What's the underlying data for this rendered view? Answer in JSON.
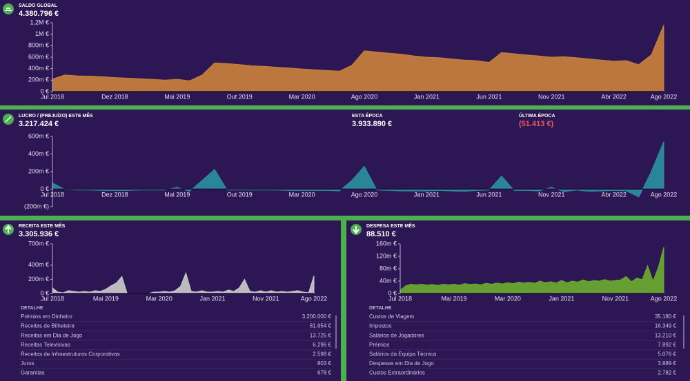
{
  "chart_data": [
    {
      "type": "area",
      "title": "SALDO GLOBAL",
      "amount": "4.380.796 €",
      "color": "#c8803c",
      "categories": [
        "Jul 2018",
        null,
        null,
        null,
        null,
        "Dez 2018",
        null,
        null,
        null,
        null,
        "Mai 2019",
        null,
        null,
        null,
        null,
        "Out 2019",
        null,
        null,
        null,
        null,
        "Mar 2020",
        null,
        null,
        null,
        null,
        "Ago 2020",
        null,
        null,
        null,
        null,
        "Jan 2021",
        null,
        null,
        null,
        null,
        "Jun 2021",
        null,
        null,
        null,
        null,
        "Nov 2021",
        null,
        null,
        null,
        null,
        "Abr 2022",
        null,
        null,
        null,
        "Ago 2022"
      ],
      "values": [
        220,
        290,
        275,
        270,
        260,
        245,
        235,
        225,
        215,
        200,
        215,
        190,
        290,
        500,
        490,
        470,
        450,
        440,
        425,
        410,
        395,
        380,
        370,
        355,
        460,
        710,
        690,
        670,
        650,
        620,
        600,
        590,
        570,
        550,
        540,
        510,
        680,
        660,
        640,
        620,
        600,
        610,
        590,
        570,
        550,
        530,
        540,
        470,
        640,
        1160
      ],
      "ylim": [
        0,
        1200
      ],
      "yticks": [
        {
          "value": 0,
          "label": "0 €"
        },
        {
          "value": 200,
          "label": "200m €"
        },
        {
          "value": 400,
          "label": "400m €"
        },
        {
          "value": 600,
          "label": "600m €"
        },
        {
          "value": 800,
          "label": "800m €"
        },
        {
          "value": 1000,
          "label": "1M €"
        },
        {
          "value": 1200,
          "label": "1,2M €"
        }
      ]
    },
    {
      "type": "area",
      "title": "LUCRO / (PREJUÍZO) ESTE MÊS",
      "amount": "3.217.424 €",
      "color": "#2a8fa0",
      "stats": [
        {
          "label": "ESTA ÉPOCA",
          "value": "3.933.890 €",
          "color": "#ffffff"
        },
        {
          "label": "ÚLTIMA ÉPOCA",
          "value": "(51.413 €)",
          "color": "#f05a5a"
        }
      ],
      "categories": [
        "Jul 2018",
        null,
        null,
        null,
        null,
        "Dez 2018",
        null,
        null,
        null,
        null,
        "Mai 2019",
        null,
        null,
        null,
        null,
        "Out 2019",
        null,
        null,
        null,
        null,
        "Mar 2020",
        null,
        null,
        null,
        null,
        "Ago 2020",
        null,
        null,
        null,
        null,
        "Jan 2021",
        null,
        null,
        null,
        null,
        "Jun 2021",
        null,
        null,
        null,
        null,
        "Nov 2021",
        null,
        null,
        null,
        null,
        "Abr 2022",
        null,
        null,
        null,
        "Ago 2022"
      ],
      "values": [
        70,
        -5,
        -10,
        -10,
        -15,
        -15,
        -15,
        -10,
        -10,
        -10,
        20,
        -25,
        100,
        225,
        -10,
        -10,
        -10,
        -10,
        -10,
        -15,
        -15,
        -15,
        -15,
        -20,
        100,
        260,
        -10,
        -15,
        -20,
        -20,
        -20,
        -15,
        -20,
        -25,
        -15,
        -10,
        150,
        -15,
        -15,
        -20,
        20,
        -30,
        -10,
        -25,
        -20,
        -15,
        -20,
        -90,
        200,
        540
      ],
      "ylim": [
        -200,
        600
      ],
      "yticks": [
        {
          "value": -200,
          "label": "(200m €)"
        },
        {
          "value": 0,
          "label": "0 €"
        },
        {
          "value": 200,
          "label": "200m €"
        },
        {
          "value": 400,
          "label": "400m €"
        },
        {
          "value": 600,
          "label": "600m €"
        }
      ]
    },
    {
      "type": "area",
      "title": "RECEITA ESTE MÊS",
      "amount": "3.305.936 €",
      "color": "#c9c9c9",
      "categories": [
        "Jul 2018",
        null,
        null,
        null,
        null,
        null,
        null,
        null,
        null,
        null,
        "Mai 2019",
        null,
        null,
        null,
        null,
        null,
        null,
        null,
        null,
        null,
        "Mar 2020",
        null,
        null,
        null,
        null,
        null,
        null,
        null,
        null,
        null,
        "Jan 2021",
        null,
        null,
        null,
        null,
        null,
        null,
        null,
        null,
        null,
        "Nov 2021",
        null,
        null,
        null,
        null,
        null,
        null,
        null,
        null,
        "Ago 2022"
      ],
      "values": [
        80,
        20,
        10,
        40,
        30,
        20,
        30,
        20,
        40,
        30,
        60,
        110,
        150,
        240,
        0,
        0,
        0,
        0,
        0,
        20,
        20,
        30,
        20,
        40,
        100,
        290,
        30,
        20,
        40,
        20,
        20,
        30,
        20,
        50,
        30,
        80,
        200,
        30,
        20,
        40,
        20,
        40,
        20,
        30,
        20,
        30,
        40,
        20,
        10,
        250
      ],
      "ylim": [
        0,
        700
      ],
      "yticks": [
        {
          "value": 0,
          "label": "0 €"
        },
        {
          "value": 200,
          "label": "200m €"
        },
        {
          "value": 400,
          "label": "400m €"
        },
        {
          "value": 700,
          "label": "700m €"
        }
      ],
      "detail_title": "DETALHE",
      "detail_rows": [
        [
          "Prémios em Dinheiro",
          "3.200.000 €"
        ],
        [
          "Receitas de Bilheteira",
          "81.654 €"
        ],
        [
          "Receitas em Dia de Jogo",
          "13.725 €"
        ],
        [
          "Receitas Televisivas",
          "6.296 €"
        ],
        [
          "Receitas de Infraestruturas Corporativas",
          "2.598 €"
        ],
        [
          "Juros",
          "803 €"
        ],
        [
          "Garantias",
          "678 €"
        ]
      ]
    },
    {
      "type": "area",
      "title": "DESPESA ESTE MÊS",
      "amount": "88.510 €",
      "color": "#6aaa2f",
      "categories": [
        "Jul 2018",
        null,
        null,
        null,
        null,
        null,
        null,
        null,
        null,
        null,
        "Mai 2019",
        null,
        null,
        null,
        null,
        null,
        null,
        null,
        null,
        null,
        "Mar 2020",
        null,
        null,
        null,
        null,
        null,
        null,
        null,
        null,
        null,
        "Jan 2021",
        null,
        null,
        null,
        null,
        null,
        null,
        null,
        null,
        null,
        "Nov 2021",
        null,
        null,
        null,
        null,
        null,
        null,
        null,
        null,
        "Ago 2022"
      ],
      "values": [
        10,
        25,
        30,
        28,
        30,
        27,
        29,
        26,
        30,
        28,
        30,
        27,
        32,
        29,
        31,
        28,
        33,
        30,
        34,
        31,
        35,
        32,
        37,
        34,
        36,
        33,
        40,
        35,
        38,
        34,
        42,
        35,
        40,
        37,
        44,
        38,
        42,
        40,
        45,
        40,
        42,
        44,
        55,
        38,
        50,
        45,
        90,
        40,
        85,
        150
      ],
      "ylim": [
        0,
        160
      ],
      "yticks": [
        {
          "value": 0,
          "label": "0 €"
        },
        {
          "value": 40,
          "label": "40m €"
        },
        {
          "value": 80,
          "label": "80m €"
        },
        {
          "value": 120,
          "label": "120m €"
        },
        {
          "value": 160,
          "label": "160m €"
        }
      ],
      "detail_title": "DETALHE",
      "detail_rows": [
        [
          "Custos de Viagem",
          "35.180 €"
        ],
        [
          "Impostos",
          "16.349 €"
        ],
        [
          "Salários de Jogadores",
          "13.210 €"
        ],
        [
          "Prémios",
          "7.892 €"
        ],
        [
          "Salários da Equipa Técnica",
          "5.076 €"
        ],
        [
          "Despesas em Dia de Jogo",
          "3.889 €"
        ],
        [
          "Custos Extraordinários",
          "2.782 €"
        ]
      ]
    }
  ]
}
